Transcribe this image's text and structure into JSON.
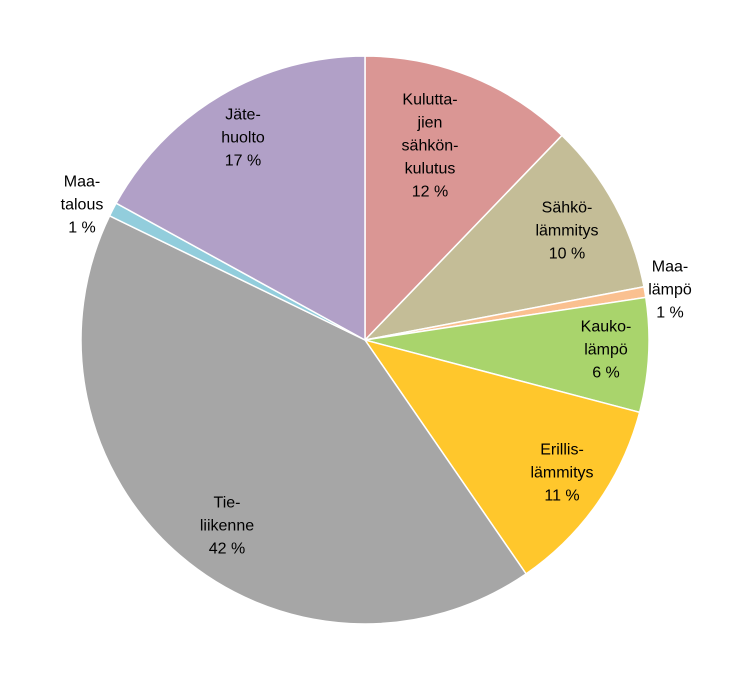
{
  "chart_data": {
    "type": "pie",
    "title": "",
    "start_angle_deg": 0,
    "direction": "clockwise",
    "slices": [
      {
        "label_lines": [
          "Kulutta-",
          "jien",
          "sähkön-",
          "kulutus"
        ],
        "value_text": "12 %",
        "value": 12.2,
        "color": "#da9694"
      },
      {
        "label_lines": [
          "Sähkö-",
          "lämmitys"
        ],
        "value_text": "10 %",
        "value": 9.8,
        "color": "#c4bd97"
      },
      {
        "label_lines": [
          "Maa-",
          "lämpö"
        ],
        "value_text": "1 %",
        "value": 0.6,
        "color": "#fac090"
      },
      {
        "label_lines": [
          "Kauko-",
          "lämpö"
        ],
        "value_text": "6 %",
        "value": 6.5,
        "color": "#a9d46c"
      },
      {
        "label_lines": [
          "Erillis-",
          "lämmitys"
        ],
        "value_text": "11 %",
        "value": 11.3,
        "color": "#ffc72c"
      },
      {
        "label_lines": [
          "Tie-",
          "liikenne"
        ],
        "value_text": "42 %",
        "value": 41.8,
        "color": "#a6a6a6"
      },
      {
        "label_lines": [
          "Maa-",
          "talous"
        ],
        "value_text": "1 %",
        "value": 0.8,
        "color": "#92cddc"
      },
      {
        "label_lines": [
          "Jäte-",
          "huolto"
        ],
        "value_text": "17 %",
        "value": 17.0,
        "color": "#b1a0c7"
      }
    ]
  }
}
